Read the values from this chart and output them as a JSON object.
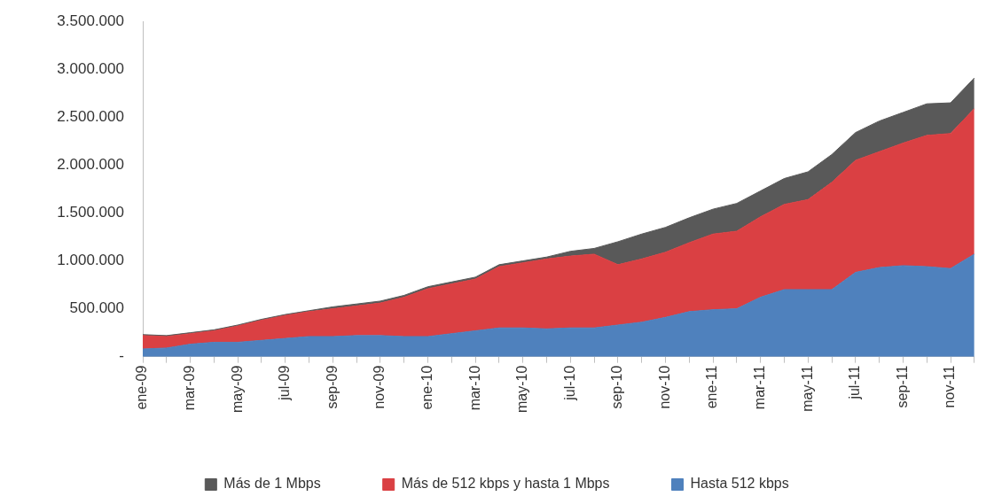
{
  "chart_data": {
    "type": "area",
    "stacked": true,
    "legend": "bottom",
    "categories": [
      "ene-09",
      null,
      "mar-09",
      null,
      "may-09",
      null,
      "jul-09",
      null,
      "sep-09",
      null,
      "nov-09",
      null,
      "ene-10",
      null,
      "mar-10",
      null,
      "may-10",
      null,
      "jul-10",
      null,
      "sep-10",
      null,
      "nov-10",
      null,
      "ene-11",
      null,
      "mar-11",
      null,
      "may-11",
      null,
      "jul-11",
      null,
      "sep-11",
      null,
      "nov-11",
      null
    ],
    "series": [
      {
        "name": "Hasta 512 kbps",
        "color": "#4f81bd",
        "values": [
          80000,
          90000,
          130000,
          150000,
          150000,
          170000,
          190000,
          210000,
          210000,
          220000,
          220000,
          210000,
          210000,
          240000,
          270000,
          300000,
          300000,
          290000,
          300000,
          300000,
          330000,
          360000,
          410000,
          470000,
          490000,
          500000,
          620000,
          700000,
          700000,
          700000,
          880000,
          930000,
          950000,
          940000,
          920000,
          1070000
        ]
      },
      {
        "name": "Más de 512 kbps y hasta 1 Mbps",
        "color": "#da4043",
        "values": [
          140000,
          120000,
          110000,
          120000,
          170000,
          210000,
          240000,
          260000,
          290000,
          310000,
          340000,
          410000,
          500000,
          520000,
          540000,
          640000,
          680000,
          730000,
          750000,
          770000,
          630000,
          660000,
          680000,
          720000,
          790000,
          810000,
          840000,
          890000,
          940000,
          1120000,
          1170000,
          1210000,
          1280000,
          1370000,
          1410000,
          1520000
        ]
      },
      {
        "name": "Más de 1 Mbps",
        "color": "#595959",
        "values": [
          10000,
          10000,
          10000,
          10000,
          10000,
          10000,
          10000,
          10000,
          20000,
          20000,
          20000,
          20000,
          20000,
          20000,
          20000,
          20000,
          20000,
          20000,
          50000,
          60000,
          240000,
          260000,
          260000,
          260000,
          260000,
          290000,
          270000,
          270000,
          290000,
          290000,
          290000,
          320000,
          320000,
          330000,
          320000,
          320000
        ]
      }
    ],
    "ylim": [
      0,
      3500000
    ],
    "yticks": [
      {
        "value": 0,
        "label": "-"
      },
      {
        "value": 500000,
        "label": "500.000"
      },
      {
        "value": 1000000,
        "label": "1.000.000"
      },
      {
        "value": 1500000,
        "label": "1.500.000"
      },
      {
        "value": 2000000,
        "label": "2.000.000"
      },
      {
        "value": 2500000,
        "label": "2.500.000"
      },
      {
        "value": 3000000,
        "label": "3.000.000"
      },
      {
        "value": 3500000,
        "label": "3.500.000"
      }
    ]
  }
}
